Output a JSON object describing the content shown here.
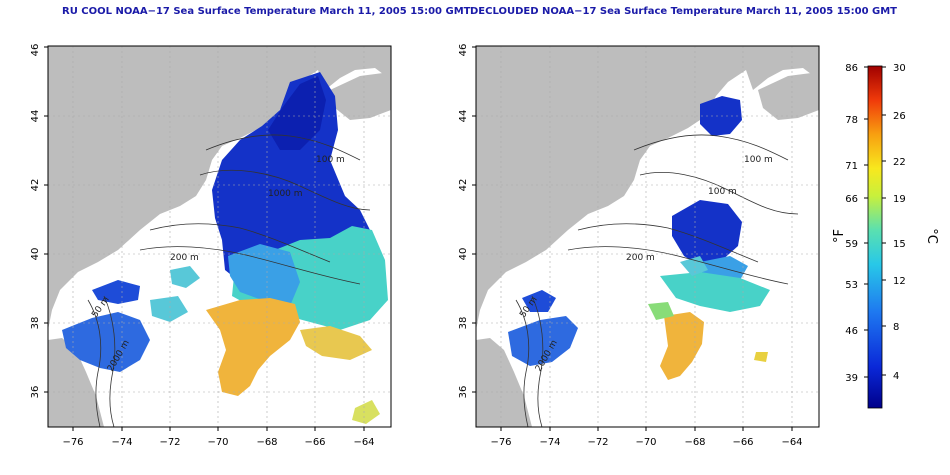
{
  "panels": [
    {
      "title": "RU COOL NOAA−17 Sea Surface Temperature March 11, 2005 15:00 GMT",
      "contour_labels": [
        "100 m",
        "1000 m",
        "200 m",
        "50 m",
        "2000 m"
      ]
    },
    {
      "title": "DECLOUDED NOAA−17 Sea Surface Temperature March 11, 2005 15:00 GMT",
      "contour_labels": [
        "100 m",
        "100 m",
        "200 m",
        "50 m",
        "2000 m"
      ]
    }
  ],
  "axes": {
    "lat_ticks": [
      "36",
      "38",
      "40",
      "42",
      "44",
      "46"
    ],
    "lon_ticks": [
      "−76",
      "−74",
      "−72",
      "−70",
      "−68",
      "−66",
      "−64"
    ]
  },
  "colorbar": {
    "unit_left": "°F",
    "unit_right": "°C",
    "fahrenheit_ticks": [
      "86",
      "78",
      "71",
      "66",
      "59",
      "53",
      "46",
      "39"
    ],
    "celsius_ticks": [
      "30",
      "26",
      "22",
      "19",
      "15",
      "12",
      "8",
      "4"
    ]
  },
  "colors": {
    "land": "#bdbdbd",
    "cold": "#1432c8",
    "cool": "#3aa0e6",
    "mid": "#48d2c8",
    "warm": "#f0b43c",
    "grid": "#aaaaaa",
    "title": "#1a1aa8"
  }
}
